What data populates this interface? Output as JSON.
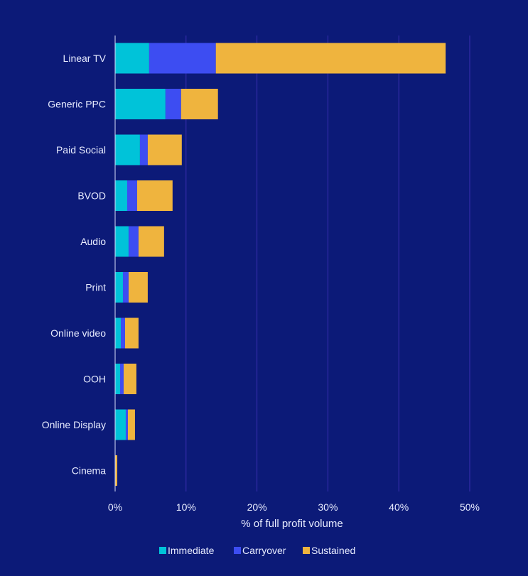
{
  "chart_data": {
    "type": "bar",
    "orientation": "horizontal",
    "stacked": true,
    "categories": [
      "Linear TV",
      "Generic PPC",
      "Paid Social",
      "BVOD",
      "Audio",
      "Print",
      "Online video",
      "OOH",
      "Online Display",
      "Cinema"
    ],
    "series": [
      {
        "name": "Immediate",
        "color": "#00c3d9",
        "values": [
          4.8,
          7.1,
          3.5,
          1.7,
          1.9,
          1.1,
          0.8,
          0.7,
          1.5,
          0.0
        ]
      },
      {
        "name": "Carryover",
        "color": "#3d4df2",
        "values": [
          9.4,
          2.2,
          1.1,
          1.4,
          1.4,
          0.8,
          0.6,
          0.5,
          0.3,
          0.0
        ]
      },
      {
        "name": "Sustained",
        "color": "#efb43e",
        "values": [
          32.4,
          5.2,
          4.8,
          5.0,
          3.6,
          2.7,
          1.9,
          1.8,
          1.0,
          0.3
        ]
      }
    ],
    "xlim": [
      0,
      50
    ],
    "ticks": [
      "0%",
      "10%",
      "20%",
      "30%",
      "40%",
      "50%"
    ],
    "xlabel": "% of full profit volume",
    "ylabel": "",
    "title": "",
    "grid": true,
    "legend_position": "bottom-center"
  }
}
